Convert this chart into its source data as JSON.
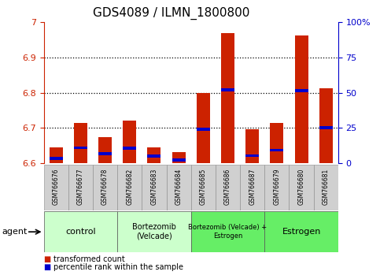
{
  "title": "GDS4089 / ILMN_1800800",
  "samples": [
    "GSM766676",
    "GSM766677",
    "GSM766678",
    "GSM766682",
    "GSM766683",
    "GSM766684",
    "GSM766685",
    "GSM766686",
    "GSM766687",
    "GSM766679",
    "GSM766680",
    "GSM766681"
  ],
  "red_values": [
    6.645,
    6.715,
    6.675,
    6.72,
    6.645,
    6.632,
    6.8,
    6.97,
    6.697,
    6.715,
    6.963,
    6.812
  ],
  "blue_values": [
    6.614,
    6.644,
    6.627,
    6.643,
    6.62,
    6.609,
    6.697,
    6.808,
    6.621,
    6.637,
    6.806,
    6.701
  ],
  "ymin": 6.6,
  "ymax": 7.0,
  "y2min": 0,
  "y2max": 100,
  "yticks_left": [
    6.6,
    6.7,
    6.8,
    6.9,
    7.0
  ],
  "ytick_labels_left": [
    "6.6",
    "6.7",
    "6.8",
    "6.9",
    "7"
  ],
  "yticks_right": [
    0,
    25,
    50,
    75,
    100
  ],
  "ytick_labels_right": [
    "0",
    "25",
    "50",
    "75",
    "100%"
  ],
  "grid_lines": [
    6.7,
    6.8,
    6.9
  ],
  "groups": [
    {
      "label": "control",
      "start": 0,
      "end": 3,
      "color": "#ccffcc",
      "font_size": 8
    },
    {
      "label": "Bortezomib\n(Velcade)",
      "start": 3,
      "end": 6,
      "color": "#ccffcc",
      "font_size": 7
    },
    {
      "label": "Bortezomib (Velcade) +\nEstrogen",
      "start": 6,
      "end": 9,
      "color": "#66ee66",
      "font_size": 6
    },
    {
      "label": "Estrogen",
      "start": 9,
      "end": 12,
      "color": "#66ee66",
      "font_size": 8
    }
  ],
  "bar_color": "#cc2200",
  "blue_color": "#0000cc",
  "bar_width": 0.55,
  "legend_items": [
    {
      "color": "#cc2200",
      "label": "transformed count"
    },
    {
      "color": "#0000cc",
      "label": "percentile rank within the sample"
    }
  ],
  "agent_label": "agent"
}
